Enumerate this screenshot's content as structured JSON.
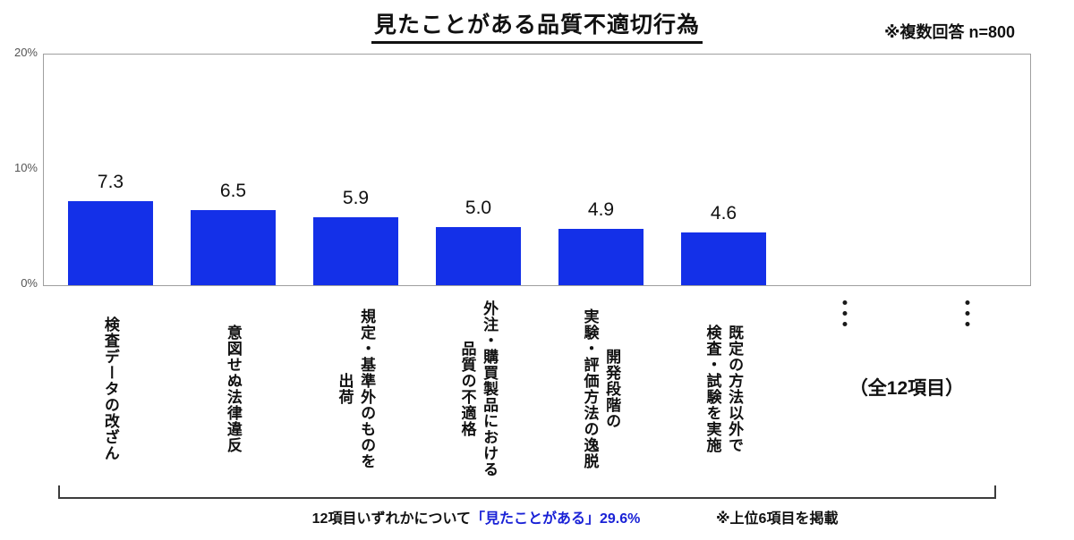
{
  "title": "見たことがある品質不適切行為",
  "note_top_right": "※複数回答 n=800",
  "chart_data": {
    "type": "bar",
    "title": "見たことがある品質不適切行為",
    "categories": [
      "検査データの改ざん",
      "意図せぬ法律違反",
      "規定・基準外のものを\n出荷",
      "外注・購買製品における\n品質の不適格",
      "開発段階の\n実験・評価方法の逸脱",
      "既定の方法以外で\n検査・試験を実施"
    ],
    "values": [
      7.3,
      6.5,
      5.9,
      5.0,
      4.9,
      4.6
    ],
    "value_labels": [
      "7.3",
      "6.5",
      "5.9",
      "5.0",
      "4.9",
      "4.6"
    ],
    "xlabel": "",
    "ylabel": "",
    "ylim": [
      0,
      20
    ],
    "yticks": [
      {
        "label": "0%",
        "value": 0
      },
      {
        "label": "10%",
        "value": 10
      },
      {
        "label": "20%",
        "value": 20
      }
    ],
    "grid": false,
    "legend": false,
    "bar_color": "#1430e8"
  },
  "total_items_note": "（全12項目）",
  "bottom": {
    "prefix": "12項目いずれかについて",
    "highlight": "「見たことがある」29.6%",
    "right_note": "※上位6項目を掲載"
  },
  "colors": {
    "bar": "#1430e8",
    "highlight_text": "#1a22d6"
  }
}
